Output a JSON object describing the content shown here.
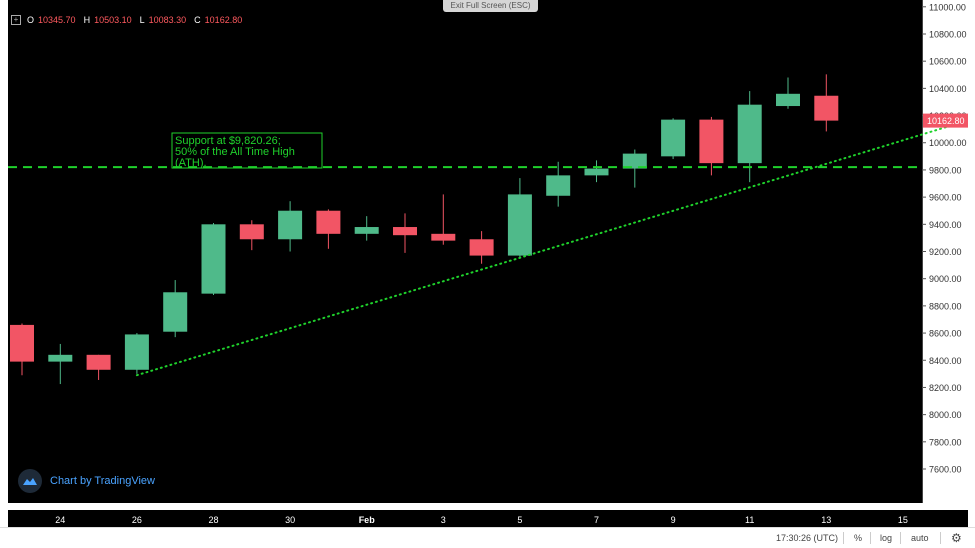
{
  "banner": {
    "exit_fullscreen": "Exit Full Screen (ESC)"
  },
  "ohlc": {
    "o_label": "O",
    "o": "10345.70",
    "h_label": "H",
    "h": "10503.10",
    "l_label": "L",
    "l": "10083.30",
    "c_label": "C",
    "c": "10162.80"
  },
  "annotation": {
    "lines": [
      "Support at $9,820.26;",
      "50% of the All Time High",
      "(ATH)."
    ]
  },
  "branding": {
    "label": "Chart by TradingView"
  },
  "toolbar": {
    "time": "17:30:26 (UTC)",
    "percent": "%",
    "log": "log",
    "auto": "auto",
    "settings_icon": "gear-icon"
  },
  "colors": {
    "up": "#4fba8a",
    "down": "#f25565",
    "support_line": "#1fd22c",
    "trend_line": "#1fd22c",
    "background": "#000000"
  },
  "chart_data": {
    "type": "candlestick",
    "ylim": [
      7350,
      11050
    ],
    "y_ticks": [
      7600,
      7800,
      8000,
      8200,
      8400,
      8600,
      8800,
      9000,
      9200,
      9400,
      9600,
      9800,
      10000,
      10200,
      10400,
      10600,
      10800,
      11000
    ],
    "y_tick_labels": [
      "7600.00",
      "7800.00",
      "8000.00",
      "8200.00",
      "8400.00",
      "8600.00",
      "8800.00",
      "9000.00",
      "9200.00",
      "9400.00",
      "9600.00",
      "9800.00",
      "10000.00",
      "10200.00",
      "10400.00",
      "10600.00",
      "10800.00",
      "11000.00"
    ],
    "x_tick_labels": [
      {
        "label": "24",
        "index": 1
      },
      {
        "label": "26",
        "index": 3
      },
      {
        "label": "28",
        "index": 5
      },
      {
        "label": "30",
        "index": 7
      },
      {
        "label": "Feb",
        "index": 9
      },
      {
        "label": "3",
        "index": 11
      },
      {
        "label": "5",
        "index": 13
      },
      {
        "label": "7",
        "index": 15
      },
      {
        "label": "9",
        "index": 17
      },
      {
        "label": "11",
        "index": 19
      },
      {
        "label": "13",
        "index": 21
      },
      {
        "label": "15",
        "index": 23
      }
    ],
    "candles": [
      {
        "o": 8660,
        "h": 8670,
        "l": 8290,
        "c": 8390
      },
      {
        "o": 8390,
        "h": 8520,
        "l": 8225,
        "c": 8440
      },
      {
        "o": 8440,
        "h": 8440,
        "l": 8255,
        "c": 8330
      },
      {
        "o": 8330,
        "h": 8600,
        "l": 8300,
        "c": 8590
      },
      {
        "o": 8610,
        "h": 8990,
        "l": 8570,
        "c": 8900
      },
      {
        "o": 8890,
        "h": 9410,
        "l": 8880,
        "c": 9400
      },
      {
        "o": 9400,
        "h": 9430,
        "l": 9210,
        "c": 9290
      },
      {
        "o": 9290,
        "h": 9570,
        "l": 9200,
        "c": 9500
      },
      {
        "o": 9500,
        "h": 9510,
        "l": 9220,
        "c": 9330
      },
      {
        "o": 9330,
        "h": 9460,
        "l": 9280,
        "c": 9380
      },
      {
        "o": 9380,
        "h": 9480,
        "l": 9190,
        "c": 9320
      },
      {
        "o": 9330,
        "h": 9620,
        "l": 9250,
        "c": 9280
      },
      {
        "o": 9290,
        "h": 9350,
        "l": 9110,
        "c": 9170
      },
      {
        "o": 9170,
        "h": 9740,
        "l": 9150,
        "c": 9620
      },
      {
        "o": 9610,
        "h": 9860,
        "l": 9530,
        "c": 9760
      },
      {
        "o": 9760,
        "h": 9870,
        "l": 9710,
        "c": 9810
      },
      {
        "o": 9810,
        "h": 9950,
        "l": 9670,
        "c": 9920
      },
      {
        "o": 9900,
        "h": 10180,
        "l": 9880,
        "c": 10170
      },
      {
        "o": 10170,
        "h": 10190,
        "l": 9760,
        "c": 9850
      },
      {
        "o": 9850,
        "h": 10380,
        "l": 9710,
        "c": 10280
      },
      {
        "o": 10270,
        "h": 10480,
        "l": 10250,
        "c": 10360
      },
      {
        "o": 10345.7,
        "h": 10503.1,
        "l": 10083.3,
        "c": 10162.8
      }
    ],
    "support_level": 9820.26,
    "trend_line": [
      {
        "index": 3,
        "value": 8290
      },
      {
        "index": 24.3,
        "value": 10130
      }
    ],
    "last_price_label": "10162.80"
  }
}
